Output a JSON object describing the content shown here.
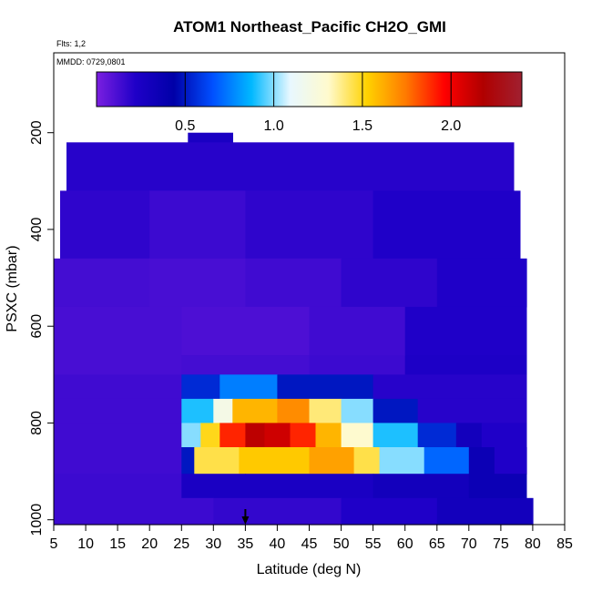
{
  "chart_data": {
    "type": "heatmap",
    "title": "ATOM1 Northeast_Pacific CH2O_GMI",
    "flights_label": "Flts: 1,2",
    "date_label": "MMDD: 0729,0801",
    "xlabel": "Latitude (deg N)",
    "ylabel": "PSXC (mbar)",
    "x_ticks": [
      "5",
      "10",
      "15",
      "20",
      "25",
      "30",
      "35",
      "40",
      "45",
      "50",
      "55",
      "60",
      "65",
      "70",
      "75",
      "80",
      "85"
    ],
    "y_ticks": [
      "200",
      "400",
      "600",
      "800",
      "1000"
    ],
    "xlim": [
      5,
      85
    ],
    "ylim": [
      1010,
      35
    ],
    "colorbar": {
      "range": [
        0.0,
        2.4
      ],
      "ticks": [
        "0.5",
        "1.0",
        "1.5",
        "2.0"
      ],
      "colors": [
        "#7b1fe0",
        "#1f00c8",
        "#0000a8",
        "#0050ff",
        "#00b8ff",
        "#e8f8ff",
        "#fffacd",
        "#ffd200",
        "#ff7a00",
        "#ff0000",
        "#b00000",
        "#a02030"
      ]
    },
    "marker_latitude": 35,
    "layers": [
      {
        "p_top": 200,
        "p_bot": 240,
        "segments": [
          [
            26,
            33,
            0.25
          ]
        ]
      },
      {
        "p_top": 220,
        "p_bot": 320,
        "segments": [
          [
            7,
            77,
            0.2
          ]
        ]
      },
      {
        "p_top": 320,
        "p_bot": 460,
        "segments": [
          [
            6,
            20,
            0.18
          ],
          [
            20,
            35,
            0.15
          ],
          [
            35,
            55,
            0.18
          ],
          [
            55,
            78,
            0.22
          ]
        ]
      },
      {
        "p_top": 460,
        "p_bot": 560,
        "segments": [
          [
            5,
            20,
            0.13
          ],
          [
            20,
            35,
            0.12
          ],
          [
            35,
            50,
            0.14
          ],
          [
            50,
            65,
            0.18
          ],
          [
            65,
            79,
            0.22
          ]
        ]
      },
      {
        "p_top": 560,
        "p_bot": 660,
        "segments": [
          [
            5,
            25,
            0.12
          ],
          [
            25,
            45,
            0.11
          ],
          [
            45,
            60,
            0.14
          ],
          [
            60,
            79,
            0.22
          ]
        ]
      },
      {
        "p_top": 660,
        "p_bot": 700,
        "segments": [
          [
            5,
            25,
            0.12
          ],
          [
            25,
            45,
            0.13
          ],
          [
            45,
            60,
            0.15
          ],
          [
            60,
            79,
            0.23
          ]
        ]
      },
      {
        "p_top": 700,
        "p_bot": 750,
        "segments": [
          [
            5,
            25,
            0.14
          ],
          [
            25,
            31,
            0.55
          ],
          [
            31,
            40,
            0.75
          ],
          [
            40,
            55,
            0.5
          ],
          [
            55,
            79,
            0.2
          ]
        ]
      },
      {
        "p_top": 750,
        "p_bot": 800,
        "segments": [
          [
            5,
            25,
            0.14
          ],
          [
            25,
            30,
            0.9
          ],
          [
            30,
            33,
            1.2
          ],
          [
            33,
            40,
            1.6
          ],
          [
            40,
            45,
            1.7
          ],
          [
            45,
            50,
            1.4
          ],
          [
            50,
            55,
            1.0
          ],
          [
            55,
            62,
            0.5
          ],
          [
            62,
            79,
            0.2
          ]
        ]
      },
      {
        "p_top": 800,
        "p_bot": 850,
        "segments": [
          [
            5,
            25,
            0.14
          ],
          [
            25,
            28,
            1.0
          ],
          [
            28,
            31,
            1.5
          ],
          [
            31,
            35,
            1.9
          ],
          [
            35,
            38,
            2.15
          ],
          [
            38,
            42,
            2.1
          ],
          [
            42,
            46,
            1.9
          ],
          [
            46,
            50,
            1.6
          ],
          [
            50,
            55,
            1.3
          ],
          [
            55,
            62,
            0.9
          ],
          [
            62,
            68,
            0.55
          ],
          [
            68,
            72,
            0.3
          ],
          [
            72,
            79,
            0.22
          ]
        ]
      },
      {
        "p_top": 850,
        "p_bot": 905,
        "segments": [
          [
            5,
            25,
            0.14
          ],
          [
            25,
            27,
            0.5
          ],
          [
            27,
            34,
            1.45
          ],
          [
            34,
            45,
            1.55
          ],
          [
            45,
            52,
            1.65
          ],
          [
            52,
            56,
            1.45
          ],
          [
            56,
            63,
            1.0
          ],
          [
            63,
            70,
            0.7
          ],
          [
            70,
            74,
            0.35
          ],
          [
            74,
            79,
            0.22
          ]
        ]
      },
      {
        "p_top": 905,
        "p_bot": 955,
        "segments": [
          [
            5,
            25,
            0.15
          ],
          [
            25,
            35,
            0.25
          ],
          [
            35,
            55,
            0.25
          ],
          [
            55,
            70,
            0.3
          ],
          [
            70,
            79,
            0.35
          ]
        ]
      },
      {
        "p_top": 955,
        "p_bot": 1010,
        "segments": [
          [
            5,
            30,
            0.15
          ],
          [
            30,
            50,
            0.17
          ],
          [
            50,
            65,
            0.22
          ],
          [
            65,
            80,
            0.3
          ]
        ]
      }
    ]
  }
}
